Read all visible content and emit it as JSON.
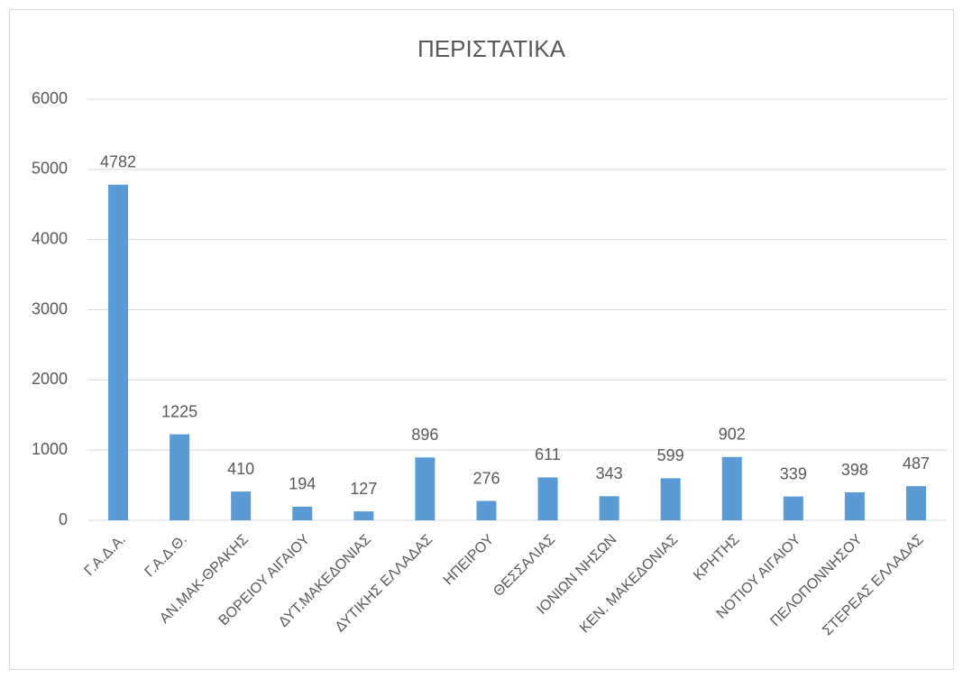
{
  "chart_data": {
    "type": "bar",
    "title": "ΠΕΡΙΣΤΑΤΙΚΑ",
    "categories": [
      "Γ.Α.Δ.Α.",
      "Γ.Α.Δ.Θ.",
      "ΑΝ.ΜΑΚ-ΘΡΑΚΗΣ",
      "ΒΟΡΕΙΟΥ ΑΙΓΑΙΟΥ",
      "ΔΥΤ.ΜΑΚΕΔΟΝΙΑΣ",
      "ΔΥΤΙΚΗΣ ΕΛΛΑΔΑΣ",
      "ΗΠΕΙΡΟΥ",
      "ΘΕΣΣΑΛΙΑΣ",
      "ΙΟΝΙΩΝ ΝΗΣΩΝ",
      "ΚΕΝ. ΜΑΚΕΔΟΝΙΑΣ",
      "ΚΡΗΤΗΣ",
      "ΝΟΤΙΟΥ ΑΙΓΑΙΟΥ",
      "ΠΕΛΟΠΟΝΝΗΣΟΥ",
      "ΣΤΕΡΕΑΣ ΕΛΛΑΔΑΣ"
    ],
    "values": [
      4782,
      1225,
      410,
      194,
      127,
      896,
      276,
      611,
      343,
      599,
      902,
      339,
      398,
      487
    ],
    "color": "#5b9bd5",
    "ylim": [
      0,
      6000
    ],
    "yticks": [
      0,
      1000,
      2000,
      3000,
      4000,
      5000,
      6000
    ],
    "grid": true
  }
}
